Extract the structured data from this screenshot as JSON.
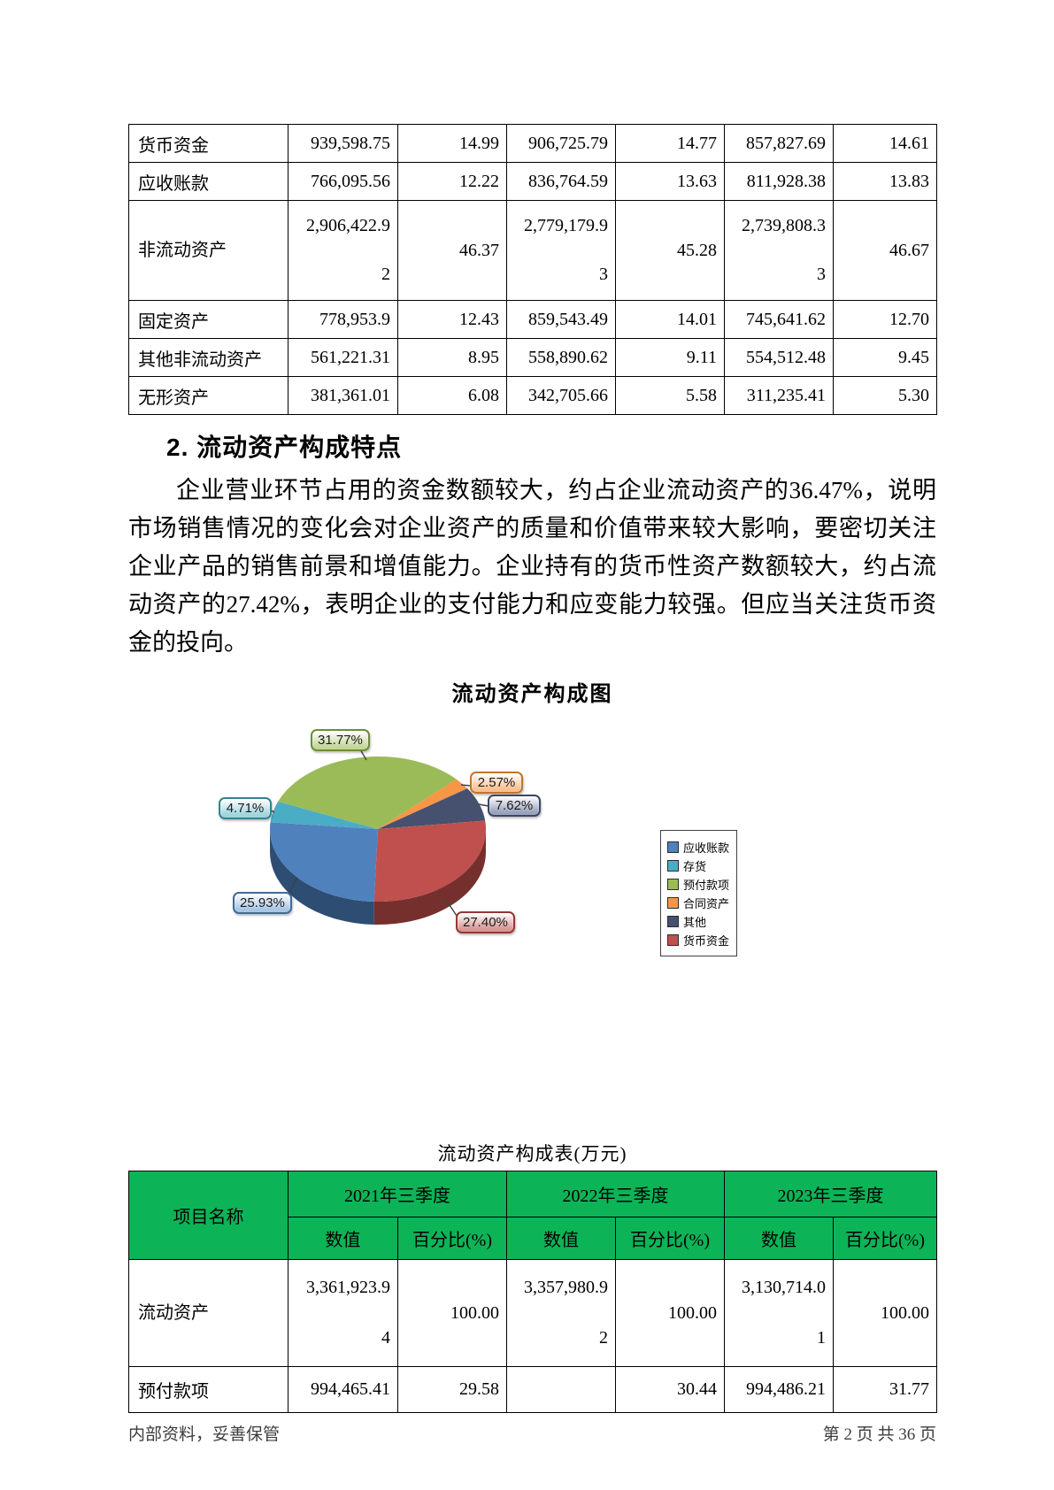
{
  "page": {
    "footer_left": "内部资料，妥善保管",
    "footer_right": "第 2 页  共 36 页",
    "header_green": "#0cb457"
  },
  "top_table": {
    "rows": [
      {
        "label": "货币资金",
        "tall": false,
        "cells": [
          "939,598.75",
          "14.99",
          "906,725.79",
          "14.77",
          "857,827.69",
          "14.61"
        ]
      },
      {
        "label": "应收账款",
        "tall": false,
        "cells": [
          "766,095.56",
          "12.22",
          "836,764.59",
          "13.63",
          "811,928.38",
          "13.83"
        ]
      },
      {
        "label": "非流动资产",
        "tall": true,
        "cells": [
          "2,906,422.9\n2",
          "46.37",
          "2,779,179.9\n3",
          "45.28",
          "2,739,808.3\n3",
          "46.67"
        ]
      },
      {
        "label": "固定资产",
        "tall": false,
        "cells": [
          "778,953.9",
          "12.43",
          "859,543.49",
          "14.01",
          "745,641.62",
          "12.70"
        ]
      },
      {
        "label": "其他非流动资产",
        "tall": false,
        "cells": [
          "561,221.31",
          "8.95",
          "558,890.62",
          "9.11",
          "554,512.48",
          "9.45"
        ]
      },
      {
        "label": "无形资产",
        "tall": false,
        "cells": [
          "381,361.01",
          "6.08",
          "342,705.66",
          "5.58",
          "311,235.41",
          "5.30"
        ]
      }
    ]
  },
  "section": {
    "heading": "2. 流动资产构成特点",
    "paragraph": "企业营业环节占用的资金数额较大，约占企业流动资产的36.47%，说明市场销售情况的变化会对企业资产的质量和价值带来较大影响，要密切关注企业产品的销售前景和增值能力。企业持有的货币性资产数额较大，约占流动资产的27.42%，表明企业的支付能力和应变能力较强。但应当关注货币资金的投向。"
  },
  "chart_data": {
    "type": "pie",
    "title": "流动资产构成图",
    "style": "3d",
    "start_angle_deg": 92,
    "direction": "clockwise",
    "legend_position": "right",
    "slices": [
      {
        "name": "应收账款",
        "value": 25.93,
        "label": "25.93%",
        "color": "#4F81BD",
        "dark": "#2e4d72",
        "bubble_bg": "#a9c6e5",
        "bubble_border": "#3e6a9b"
      },
      {
        "name": "存货",
        "value": 4.71,
        "label": "4.71%",
        "color": "#4BACC6",
        "dark": "#2d6876",
        "bubble_bg": "#9fd5de",
        "bubble_border": "#35818f"
      },
      {
        "name": "预付款项",
        "value": 31.77,
        "label": "31.77%",
        "color": "#9BBB59",
        "dark": "#5e7335",
        "bubble_bg": "#c4d79b",
        "bubble_border": "#6b8e36"
      },
      {
        "name": "合同资产",
        "value": 2.57,
        "label": "2.57%",
        "color": "#F79646",
        "dark": "#9a5a27",
        "bubble_bg": "#fac090",
        "bubble_border": "#c0762c"
      },
      {
        "name": "其他",
        "value": 7.62,
        "label": "7.62%",
        "color": "#45516F",
        "dark": "#272e40",
        "bubble_bg": "#9aa3bc",
        "bubble_border": "#3c4565"
      },
      {
        "name": "货币资金",
        "value": 27.4,
        "label": "27.40%",
        "color": "#C0504D",
        "dark": "#75302e",
        "bubble_bg": "#d99694",
        "bubble_border": "#953735"
      }
    ]
  },
  "bottom_table": {
    "title": "流动资产构成表(万元)",
    "header": {
      "item": "项目名称",
      "periods": [
        "2021年三季度",
        "2022年三季度",
        "2023年三季度"
      ],
      "value_label": "数值",
      "pct_label": "百分比(%)"
    },
    "rows": [
      {
        "label": "流动资产",
        "tall": true,
        "cells": [
          "3,361,923.9\n4",
          "100.00",
          "3,357,980.9\n2",
          "100.00",
          "3,130,714.0\n1",
          "100.00"
        ]
      },
      {
        "label": "预付款项",
        "tall": false,
        "cells": [
          "994,465.41",
          "29.58",
          "",
          "30.44",
          "994,486.21",
          "31.77"
        ]
      }
    ]
  }
}
